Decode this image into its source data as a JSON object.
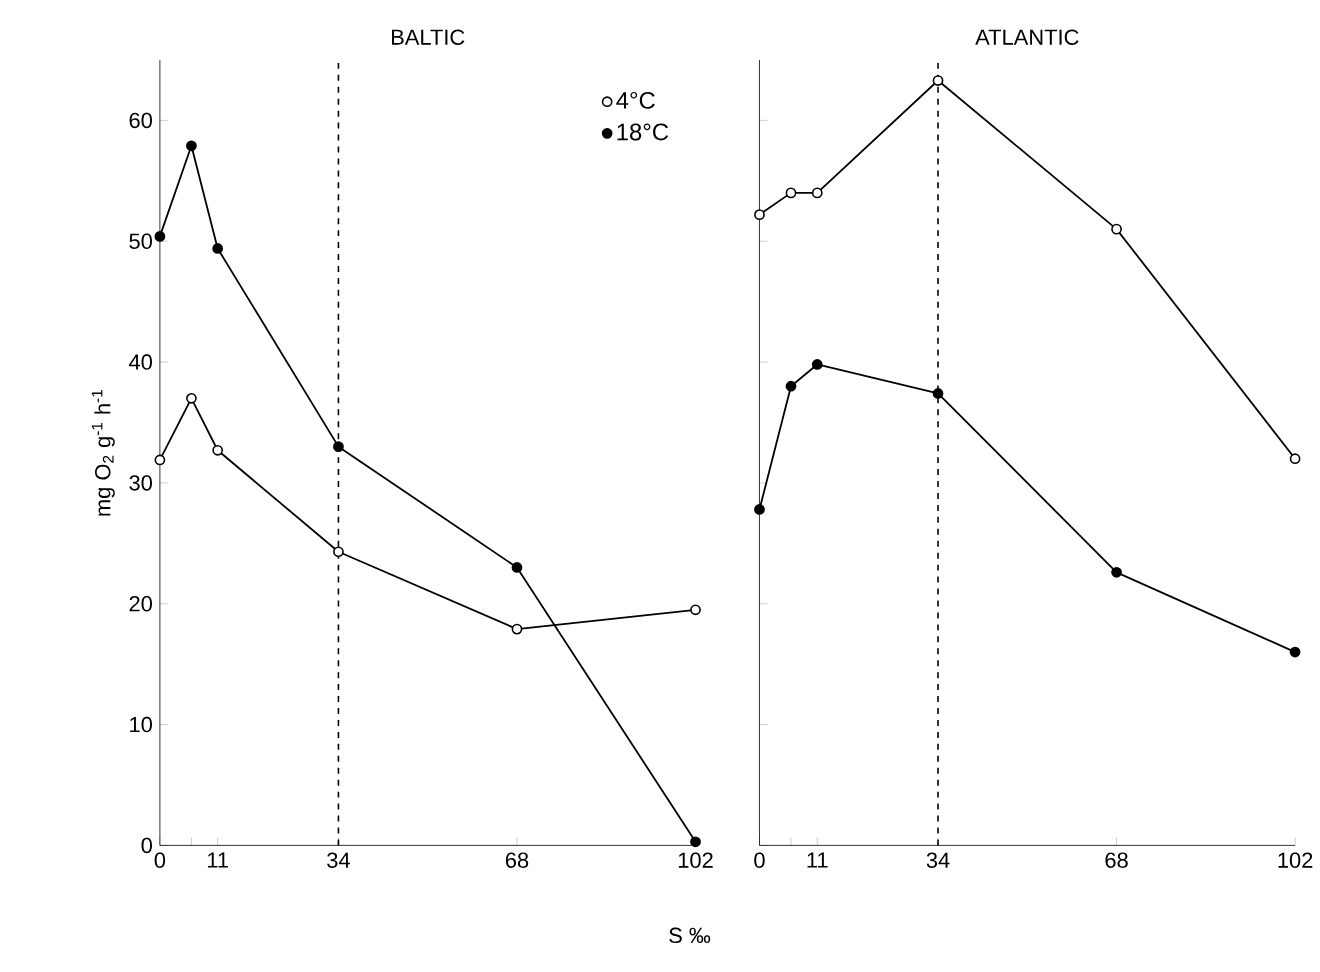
{
  "chart_data": [
    {
      "type": "line",
      "title": "BALTIC",
      "xlabel": "S ‰",
      "ylabel": "mg O$_{2}$ g$^{-1}$ h$^{-1}$",
      "x": [
        0,
        6,
        11,
        34,
        68,
        102
      ],
      "xlim": [
        0,
        102
      ],
      "ylim": [
        0,
        65
      ],
      "xticks": [
        0,
        {
          "value": 6,
          "label": null
        },
        11,
        34,
        68,
        102
      ],
      "yticks": [
        0,
        10,
        20,
        30,
        40,
        50,
        60
      ],
      "marker": "circle",
      "legend": "top right",
      "ref_lines": [
        {
          "axis": "x",
          "value": 34,
          "line_style": "dashed"
        }
      ],
      "series": [
        {
          "name": "4°C",
          "color": "#000000",
          "values": [
            31.9,
            37,
            32.7,
            24.3,
            17.9,
            19.5
          ]
        },
        {
          "name": "18°C",
          "color": "#000000",
          "values": [
            50.4,
            57.9,
            49.4,
            33,
            23,
            0.3
          ]
        }
      ]
    },
    {
      "type": "line",
      "title": "ATLANTIC",
      "x": [
        0,
        6,
        11,
        34,
        68,
        102
      ],
      "xlim": [
        0,
        102
      ],
      "ylim": [
        0,
        65
      ],
      "xticks": [
        0,
        {
          "value": 6,
          "label": null
        },
        11,
        34,
        68,
        102
      ],
      "yticks": [
        0,
        10,
        20,
        30,
        40,
        50,
        60
      ],
      "marker": "circle",
      "tick_labels": "x",
      "ref_lines": [
        {
          "axis": "x",
          "value": 34,
          "line_style": "dashed"
        }
      ],
      "series": [
        {
          "color": "#000000",
          "values": [
            52.2,
            54,
            54,
            63.3,
            51,
            32
          ]
        },
        {
          "color": "#000000",
          "values": [
            27.8,
            38,
            39.8,
            37.4,
            22.6,
            16
          ]
        }
      ]
    }
  ]
}
